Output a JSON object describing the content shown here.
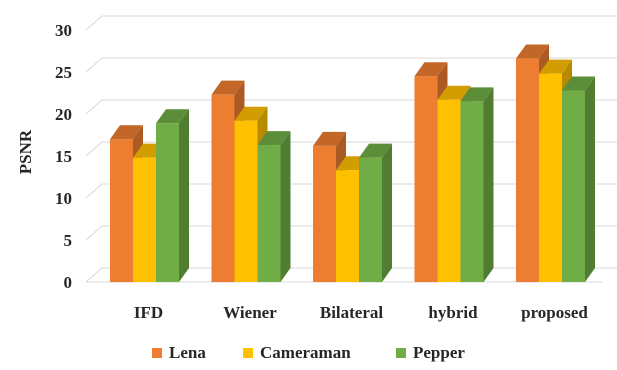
{
  "chart_data": {
    "type": "bar",
    "title": "",
    "xlabel": "",
    "ylabel": "PSNR",
    "ylim": [
      0,
      30
    ],
    "yticks": [
      0,
      5,
      10,
      15,
      20,
      25,
      30
    ],
    "grid": true,
    "legend_position": "bottom",
    "categories": [
      "IFD",
      "Wiener",
      "Bilateral",
      "hybrid",
      "proposed"
    ],
    "series": [
      {
        "name": "Lena",
        "color": "#ED7D31",
        "values": [
          17,
          22.3,
          16.2,
          24.5,
          26.6
        ]
      },
      {
        "name": "Cameraman",
        "color": "#FFC000",
        "values": [
          14.8,
          19.2,
          13.3,
          21.7,
          24.8
        ]
      },
      {
        "name": "Pepper",
        "color": "#70AD47",
        "values": [
          18.9,
          16.3,
          14.8,
          21.5,
          22.8
        ]
      }
    ]
  }
}
